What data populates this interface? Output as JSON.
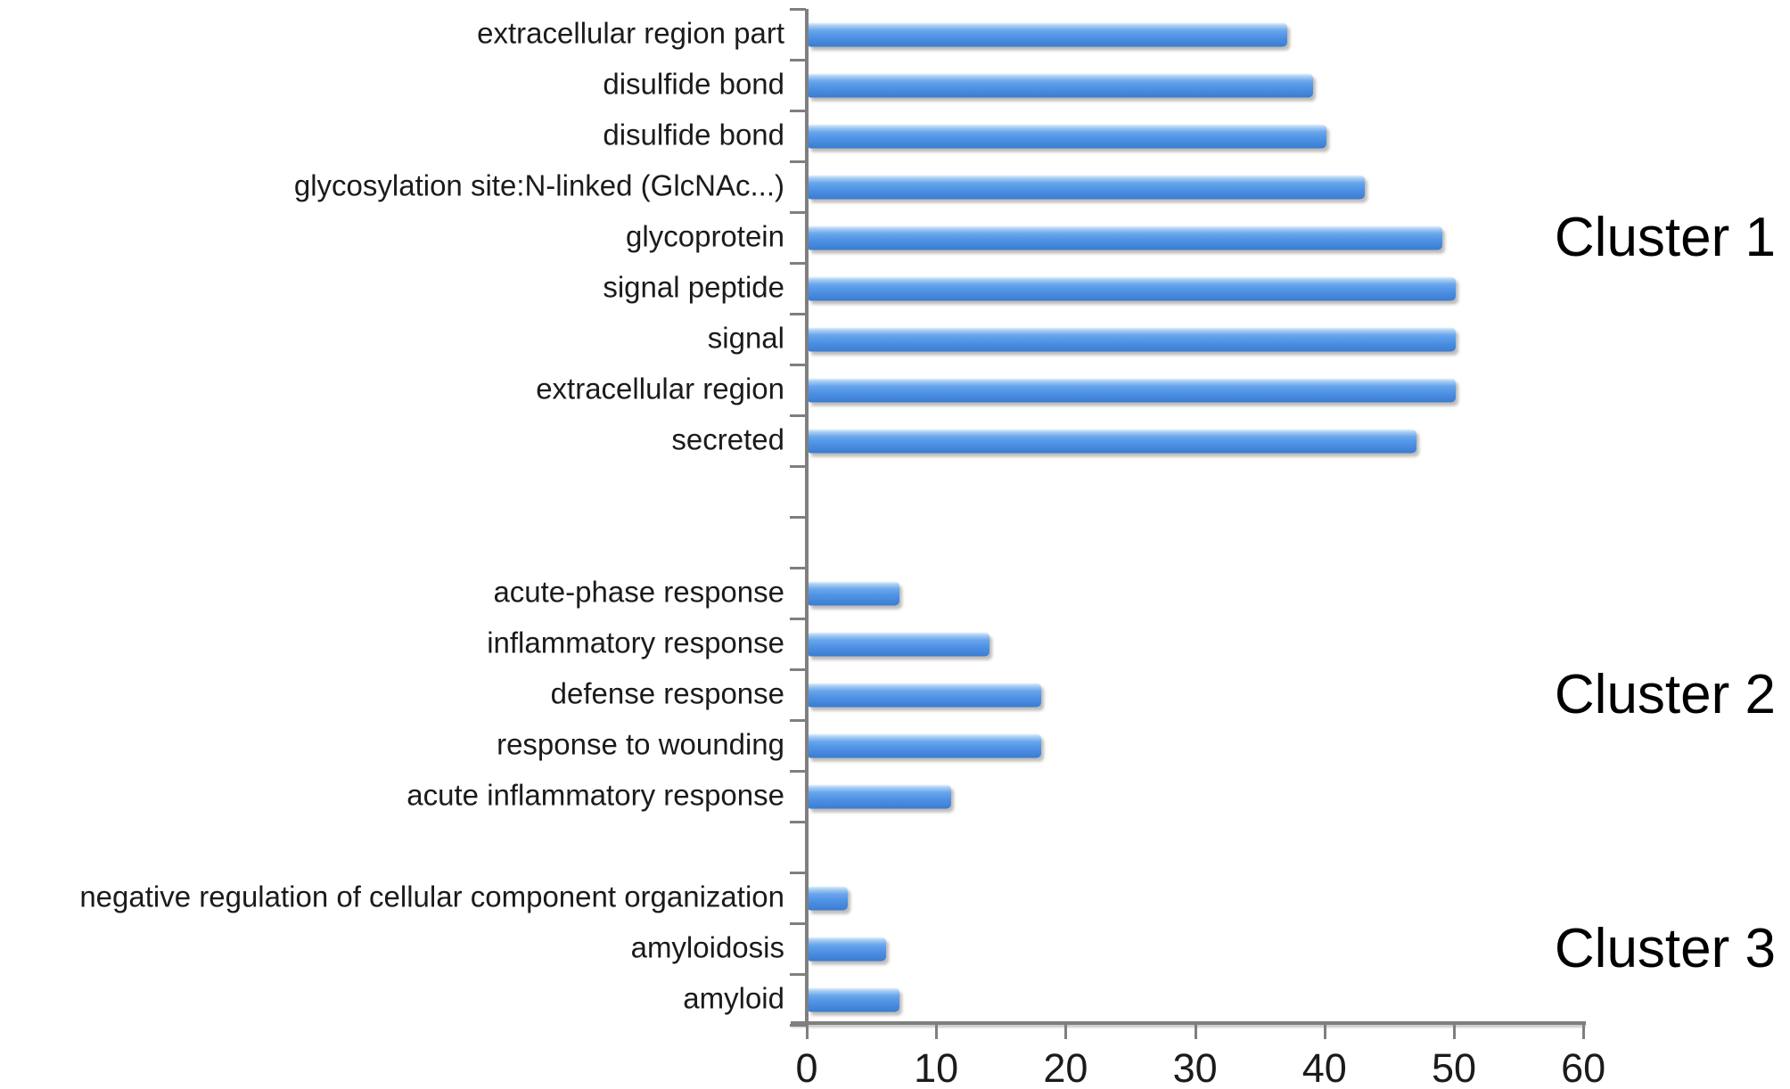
{
  "figure": {
    "background_hex": "#ffffff",
    "axis_color_hex": "#7f7f7f",
    "text_color_hex": "#1b1b1b"
  },
  "chart_data": {
    "type": "bar",
    "orientation": "horizontal",
    "title": "",
    "xlabel": "",
    "ylabel": "",
    "xlim": [
      0,
      60
    ],
    "x_ticks": [
      "0",
      "10",
      "20",
      "30",
      "40",
      "50",
      "60"
    ],
    "grid": false,
    "legend": false,
    "bar_color_hex": "#5295e6",
    "groups": [
      {
        "name": "Cluster 1",
        "items": [
          {
            "label": "extracellular region part",
            "value": 37
          },
          {
            "label": "disulfide bond",
            "value": 39
          },
          {
            "label": "disulfide bond",
            "value": 40
          },
          {
            "label": "glycosylation site:N-linked (GlcNAc...)",
            "value": 43
          },
          {
            "label": "glycoprotein",
            "value": 49
          },
          {
            "label": "signal peptide",
            "value": 50
          },
          {
            "label": "signal",
            "value": 50
          },
          {
            "label": "extracellular region",
            "value": 50
          },
          {
            "label": "secreted",
            "value": 47
          }
        ]
      },
      {
        "name": "Cluster 2",
        "items": [
          {
            "label": "acute-phase response",
            "value": 7
          },
          {
            "label": "inflammatory response",
            "value": 14
          },
          {
            "label": "defense response",
            "value": 18
          },
          {
            "label": "response to wounding",
            "value": 18
          },
          {
            "label": "acute inflammatory response",
            "value": 11
          }
        ]
      },
      {
        "name": "Cluster 3",
        "items": [
          {
            "label": "negative regulation of cellular component organization",
            "value": 3
          },
          {
            "label": "amyloidosis",
            "value": 6
          },
          {
            "label": "amyloid",
            "value": 7
          }
        ]
      }
    ],
    "empty_slots_between_groups": [
      2,
      1
    ]
  }
}
